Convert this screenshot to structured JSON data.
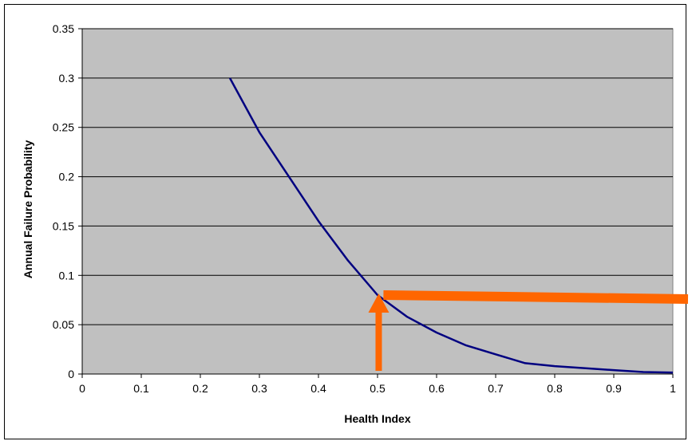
{
  "chart_data": {
    "type": "line",
    "title": "",
    "xlabel": "Health Index",
    "ylabel": "Annual Failure Probability",
    "xlim": [
      0,
      1
    ],
    "ylim": [
      0,
      0.35
    ],
    "x_ticks": [
      "0",
      "0.1",
      "0.2",
      "0.3",
      "0.4",
      "0.5",
      "0.6",
      "0.7",
      "0.8",
      "0.9",
      "1"
    ],
    "y_ticks": [
      "0",
      "0.05",
      "0.1",
      "0.15",
      "0.2",
      "0.25",
      "0.3",
      "0.35"
    ],
    "grid": "horizontal",
    "legend": "none",
    "series": [
      {
        "color": "#000080",
        "x": [
          0.25,
          0.3,
          0.35,
          0.4,
          0.45,
          0.5,
          0.55,
          0.6,
          0.65,
          0.7,
          0.75,
          0.8,
          0.85,
          0.9,
          0.95,
          1.0
        ],
        "y": [
          0.3,
          0.245,
          0.2,
          0.155,
          0.115,
          0.08,
          0.058,
          0.042,
          0.029,
          0.02,
          0.011,
          0.008,
          0.006,
          0.004,
          0.002,
          0.0015
        ]
      }
    ],
    "annotations": [
      {
        "type": "arrow",
        "color": "#ff6600",
        "from": [
          0.502,
          0.0
        ],
        "to": [
          0.502,
          0.08
        ]
      },
      {
        "type": "line",
        "color": "#ff6600",
        "from": [
          0.51,
          0.08
        ],
        "to": [
          1.06,
          0.076
        ]
      }
    ],
    "plot_background": "#c0c0c0"
  }
}
